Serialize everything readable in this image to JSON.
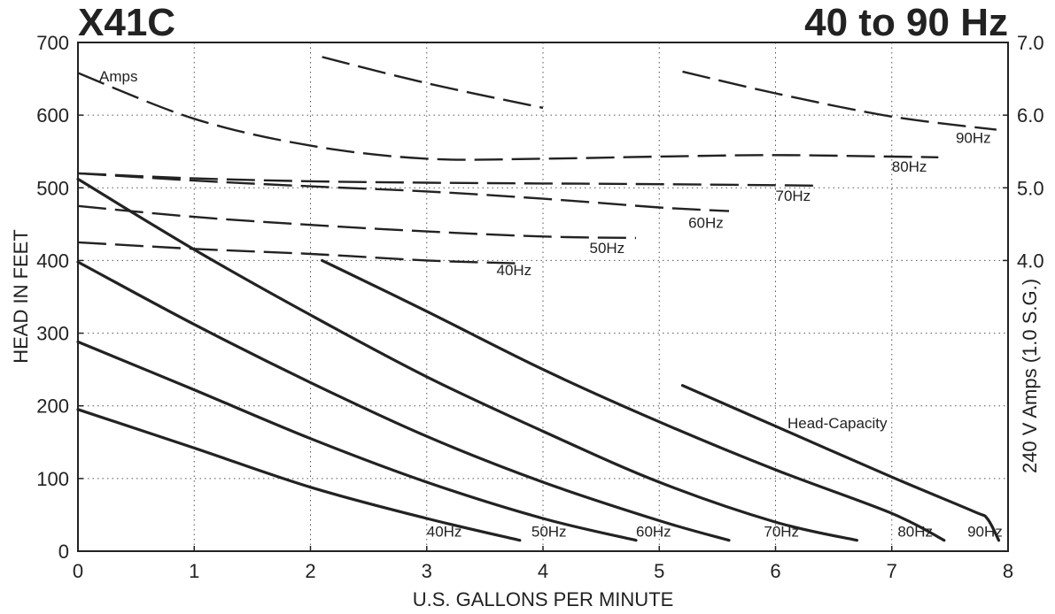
{
  "header": {
    "title": "X41C",
    "subtitle": "40 to 90 Hz"
  },
  "chart_data": {
    "type": "line",
    "xlabel": "U.S. GALLONS PER MINUTE",
    "ylabel": "HEAD IN FEET",
    "y2label": "240 V Amps (1.0 S.G.)",
    "xlim": [
      0,
      8
    ],
    "ylim": [
      0,
      700
    ],
    "y2lim": [
      0,
      7
    ],
    "x_ticks": [
      "0",
      "1",
      "2",
      "3",
      "4",
      "5",
      "6",
      "7",
      "8"
    ],
    "y_ticks": [
      "0",
      "100",
      "200",
      "300",
      "400",
      "500",
      "600",
      "700"
    ],
    "y2_ticks": [
      "4.0",
      "5.0",
      "6.0",
      "7.0"
    ],
    "y2_tick_values": [
      4,
      5,
      6,
      7
    ],
    "grid": true,
    "amps_annotation": "Amps",
    "head_annotation": "Head-Capacity",
    "head_series": [
      {
        "name": "40Hz",
        "points": [
          [
            0,
            195
          ],
          [
            1,
            142
          ],
          [
            2,
            88
          ],
          [
            3,
            45
          ],
          [
            3.8,
            15
          ]
        ],
        "label_at": [
          3.0,
          20
        ]
      },
      {
        "name": "50Hz",
        "points": [
          [
            0,
            288
          ],
          [
            1,
            222
          ],
          [
            2,
            155
          ],
          [
            3,
            95
          ],
          [
            4,
            45
          ],
          [
            4.8,
            15
          ]
        ],
        "label_at": [
          3.9,
          20
        ]
      },
      {
        "name": "60Hz",
        "points": [
          [
            0,
            398
          ],
          [
            1,
            312
          ],
          [
            2,
            232
          ],
          [
            3,
            158
          ],
          [
            4,
            95
          ],
          [
            5,
            42
          ],
          [
            5.6,
            15
          ]
        ],
        "label_at": [
          4.8,
          20
        ]
      },
      {
        "name": "70Hz",
        "points": [
          [
            0,
            512
          ],
          [
            1,
            415
          ],
          [
            2,
            325
          ],
          [
            3,
            240
          ],
          [
            4,
            165
          ],
          [
            5,
            95
          ],
          [
            6,
            40
          ],
          [
            6.7,
            15
          ]
        ],
        "label_at": [
          5.9,
          20
        ]
      },
      {
        "name": "80Hz",
        "points": [
          [
            2.1,
            400
          ],
          [
            3,
            330
          ],
          [
            4,
            250
          ],
          [
            5,
            178
          ],
          [
            6,
            112
          ],
          [
            7,
            52
          ],
          [
            7.45,
            15
          ]
        ],
        "label_at": [
          7.05,
          20
        ]
      },
      {
        "name": "90Hz",
        "points": [
          [
            5.2,
            228
          ],
          [
            6,
            172
          ],
          [
            7,
            102
          ],
          [
            7.7,
            55
          ],
          [
            7.82,
            45
          ],
          [
            7.92,
            15
          ]
        ],
        "label_at": [
          7.65,
          20
        ]
      }
    ],
    "amps_series": [
      {
        "name": "40Hz",
        "points": [
          [
            0,
            4.25
          ],
          [
            1,
            4.16
          ],
          [
            2,
            4.09
          ],
          [
            3,
            4.0
          ],
          [
            3.8,
            3.96
          ]
        ],
        "label_at": [
          3.6,
          3.8
        ]
      },
      {
        "name": "50Hz",
        "points": [
          [
            0,
            4.75
          ],
          [
            1,
            4.6
          ],
          [
            2,
            4.49
          ],
          [
            3,
            4.4
          ],
          [
            4,
            4.33
          ],
          [
            4.8,
            4.31
          ]
        ],
        "label_at": [
          4.4,
          4.1
        ]
      },
      {
        "name": "60Hz",
        "points": [
          [
            0,
            5.2
          ],
          [
            1,
            5.1
          ],
          [
            2,
            5.02
          ],
          [
            3,
            4.95
          ],
          [
            4,
            4.85
          ],
          [
            5,
            4.73
          ],
          [
            5.6,
            4.68
          ]
        ],
        "label_at": [
          5.25,
          4.45
        ]
      },
      {
        "name": "70Hz",
        "points": [
          [
            0,
            5.2
          ],
          [
            1,
            5.13
          ],
          [
            2,
            5.09
          ],
          [
            3,
            5.07
          ],
          [
            4,
            5.06
          ],
          [
            5,
            5.05
          ],
          [
            6.35,
            5.03
          ]
        ],
        "label_at": [
          6.0,
          4.82
        ]
      },
      {
        "name": "80Hz",
        "points": [
          [
            0,
            6.58
          ],
          [
            1,
            5.95
          ],
          [
            2,
            5.58
          ],
          [
            3,
            5.4
          ],
          [
            4,
            5.4
          ],
          [
            5,
            5.43
          ],
          [
            6,
            5.45
          ],
          [
            7,
            5.43
          ],
          [
            7.4,
            5.42
          ]
        ],
        "label_at": [
          7.0,
          5.22
        ]
      },
      {
        "name": "90Hz",
        "points": [
          [
            2.1,
            6.8
          ],
          [
            3,
            6.44
          ],
          [
            4,
            6.1
          ],
          [
            5.2,
            6.6
          ],
          [
            6,
            6.3
          ],
          [
            7,
            5.98
          ],
          [
            7.9,
            5.8
          ]
        ],
        "label_at": [
          7.55,
          5.62
        ]
      }
    ]
  }
}
